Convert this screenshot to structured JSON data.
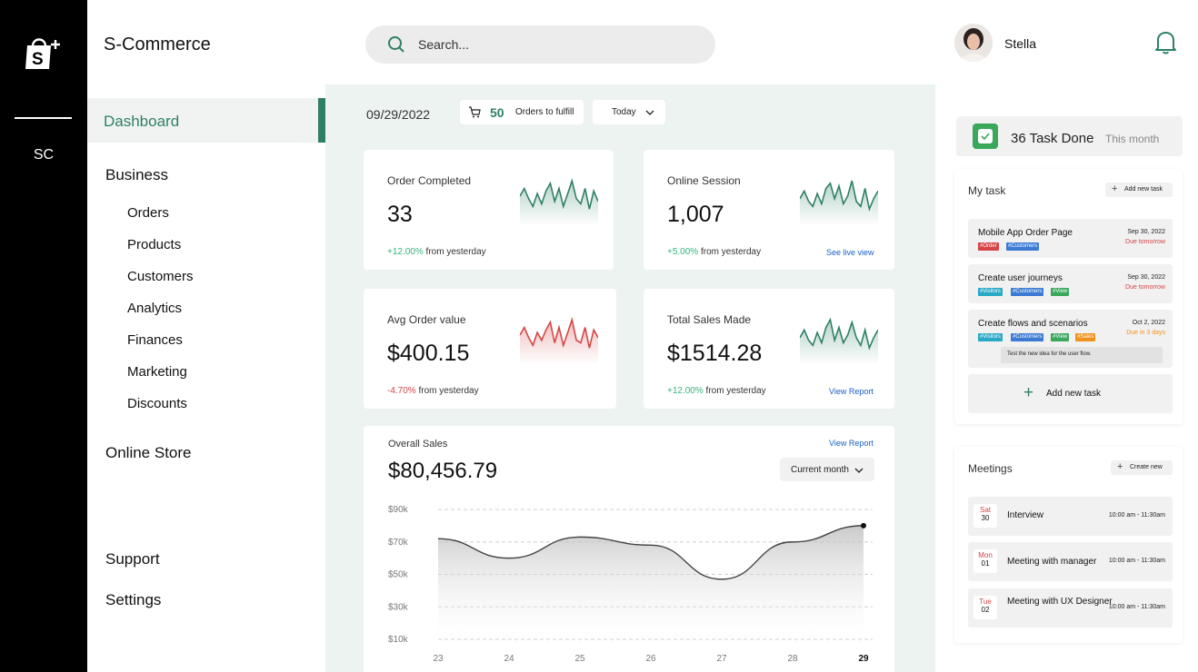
{
  "rail": {
    "short_name": "SC"
  },
  "brand": "S-Commerce",
  "sidebar": {
    "active": "Dashboard",
    "business": "Business",
    "business_items": [
      "Orders",
      "Products",
      "Customers",
      "Analytics",
      "Finances",
      "Marketing",
      "Discounts"
    ],
    "online_store": "Online Store",
    "support": "Support",
    "settings": "Settings"
  },
  "search": {
    "placeholder": "Search..."
  },
  "user": {
    "name": "Stella"
  },
  "toolbar": {
    "date": "09/29/2022",
    "orders_count": "50",
    "orders_label": "Orders to fulfill",
    "period": "Today"
  },
  "stats": [
    {
      "title": "Order Completed",
      "value": "33",
      "delta": "+12.00%",
      "delta_suffix": "from yesterday",
      "trend": "up",
      "link": "",
      "spark": [
        6,
        9,
        5,
        2,
        7,
        3,
        8,
        11,
        4,
        9,
        2,
        7,
        12,
        5,
        3,
        9,
        1,
        8,
        4
      ]
    },
    {
      "title": "Online Session",
      "value": "1,007",
      "delta": "+5.00%",
      "delta_suffix": "from yesterday",
      "trend": "up",
      "link": "See live view",
      "spark": [
        5,
        8,
        4,
        2,
        7,
        3,
        9,
        11,
        5,
        10,
        3,
        6,
        12,
        4,
        2,
        9,
        1,
        5,
        8
      ]
    },
    {
      "title": "Avg Order value",
      "value": "$400.15",
      "delta": "-4.70%",
      "delta_suffix": "from yesterday",
      "trend": "down",
      "link": "",
      "spark": [
        6,
        9,
        5,
        2,
        7,
        4,
        8,
        11,
        3,
        9,
        2,
        7,
        12,
        4,
        3,
        9,
        1,
        8,
        5
      ]
    },
    {
      "title": "Total Sales Made",
      "value": "$1514.28",
      "delta": "+12.00%",
      "delta_suffix": "from yesterday",
      "trend": "up",
      "link": "View Report",
      "spark": [
        5,
        8,
        4,
        2,
        7,
        3,
        9,
        12,
        4,
        9,
        3,
        6,
        11,
        5,
        2,
        8,
        1,
        5,
        8
      ]
    }
  ],
  "overall": {
    "title": "Overall Sales",
    "value": "$80,456.79",
    "link": "View Report",
    "period": "Current month"
  },
  "chart_data": {
    "type": "area",
    "x": [
      "23",
      "24",
      "25",
      "26",
      "27",
      "28",
      "29"
    ],
    "y": [
      72,
      60,
      73,
      68,
      47,
      70,
      80
    ],
    "yticks": [
      "$90k",
      "$70k",
      "$50k",
      "$30k",
      "$10k"
    ],
    "ylim": [
      0,
      100
    ],
    "highlight_x": "29",
    "grid": true,
    "color": "#444444"
  },
  "task_summary": {
    "count": "36 Task Done",
    "period": "This month"
  },
  "my_task": {
    "title": "My task",
    "add_label": "Add new task",
    "tasks": [
      {
        "title": "Mobile App Order Page",
        "date": "Sep 30, 2022",
        "due": "Due tomorrow",
        "tags": [
          {
            "t": "#Order",
            "c": "#d64545"
          },
          {
            "t": "#Customers",
            "c": "#3b7bd4"
          }
        ],
        "note": ""
      },
      {
        "title": "Create user journeys",
        "date": "Sep 30, 2022",
        "due": "Due tomorrow",
        "tags": [
          {
            "t": "#Visitors",
            "c": "#2aa9c6"
          },
          {
            "t": "#Customers",
            "c": "#3b7bd4"
          },
          {
            "t": "#View",
            "c": "#3aa85b"
          }
        ],
        "note": ""
      },
      {
        "title": "Create flows and scenarios",
        "date": "Oct 2, 2022",
        "due": "Due in 3 days",
        "tags": [
          {
            "t": "#Visitors",
            "c": "#2aa9c6"
          },
          {
            "t": "#Customers",
            "c": "#3b7bd4"
          },
          {
            "t": "#View",
            "c": "#3aa85b"
          },
          {
            "t": "#Sales",
            "c": "#f0921e"
          }
        ],
        "note": "Test the new idea for the user flow."
      }
    ],
    "add_new_label": "Add new task"
  },
  "meetings": {
    "title": "Meetings",
    "create_label": "Create new",
    "items": [
      {
        "dow": "Sat",
        "day": "30",
        "title": "Interview",
        "time": "10:00 am - 11:30am"
      },
      {
        "dow": "Mon",
        "day": "01",
        "title": "Meeting with manager",
        "time": "10:00 am - 11:30am"
      },
      {
        "dow": "Tue",
        "day": "02",
        "title": "Meeting with UX Designer",
        "time": "10:00 am - 11:30am"
      }
    ]
  },
  "colors": {
    "accent": "#2f8063",
    "up": "#2fb67e",
    "down": "#d64545",
    "link": "#1a5fc9"
  }
}
